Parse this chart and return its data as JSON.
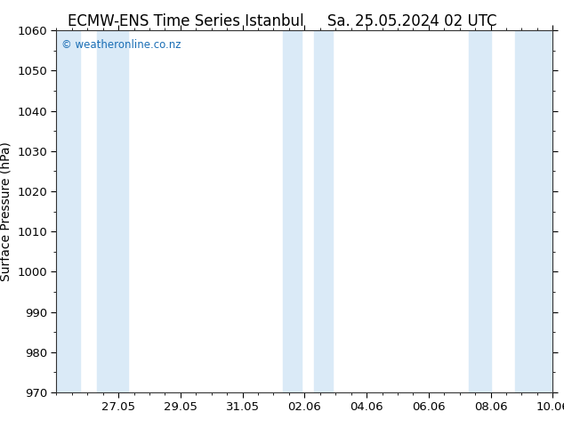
{
  "title_left": "ECMW-ENS Time Series Istanbul",
  "title_right": "Sa. 25.05.2024 02 UTC",
  "ylabel": "Surface Pressure (hPa)",
  "ylim": [
    970,
    1060
  ],
  "yticks": [
    970,
    980,
    990,
    1000,
    1010,
    1020,
    1030,
    1040,
    1050,
    1060
  ],
  "xtick_labels": [
    "27.05",
    "29.05",
    "31.05",
    "02.06",
    "04.06",
    "06.06",
    "08.06",
    "10.06"
  ],
  "xlim_days": [
    0,
    16
  ],
  "background_color": "#ffffff",
  "plot_bg_color": "#ffffff",
  "band_color": "#daeaf7",
  "shaded_bands": [
    {
      "x_start": 0.0,
      "x_end": 0.5
    },
    {
      "x_start": 1.5,
      "x_end": 2.5
    },
    {
      "x_start": 7.0,
      "x_end": 8.0
    },
    {
      "x_start": 8.5,
      "x_end": 9.0
    },
    {
      "x_start": 13.5,
      "x_end": 14.5
    },
    {
      "x_start": 15.0,
      "x_end": 16.0
    }
  ],
  "watermark_text": "© weatheronline.co.nz",
  "watermark_color": "#1a6eb5",
  "title_fontsize": 12,
  "tick_fontsize": 9.5,
  "ylabel_fontsize": 10,
  "figsize": [
    6.34,
    4.9
  ],
  "dpi": 100
}
